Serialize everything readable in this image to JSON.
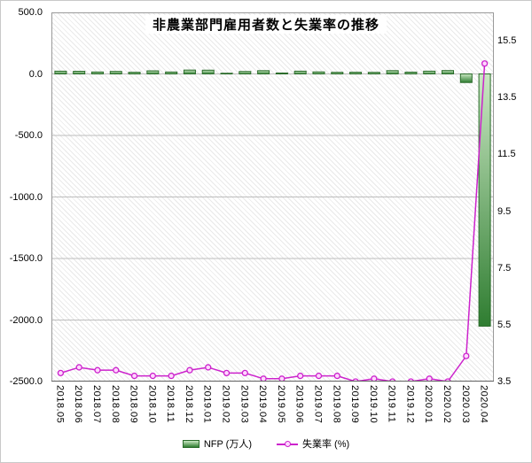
{
  "chart_data": {
    "type": "bar",
    "subtype": "bar-line-combo",
    "title": "非農業部門雇用者数と失業率の推移",
    "categories": [
      "2018.05",
      "2018.06",
      "2018.07",
      "2018.08",
      "2018.09",
      "2018.10",
      "2018.11",
      "2018.12",
      "2019.01",
      "2019.02",
      "2019.03",
      "2019.04",
      "2019.05",
      "2019.06",
      "2019.07",
      "2019.08",
      "2019.09",
      "2019.10",
      "2019.11",
      "2019.12",
      "2020.01",
      "2020.02",
      "2020.03",
      "2020.04"
    ],
    "series": [
      {
        "name": "NFP (万人)",
        "type": "bar",
        "axis": "left",
        "values": [
          22.3,
          21.3,
          15.7,
          20.1,
          13.4,
          25.0,
          15.5,
          31.2,
          30.4,
          5.6,
          19.6,
          26.3,
          7.5,
          22.4,
          16.4,
          13.0,
          13.6,
          12.8,
          26.6,
          14.5,
          22.5,
          27.3,
          -70.1,
          -2050.0
        ],
        "color_top": "#c9e7c2",
        "color_bottom": "#2f7d31",
        "border": "#2a6b2a"
      },
      {
        "name": "失業率 (%)",
        "type": "line",
        "axis": "right",
        "values": [
          3.8,
          4.0,
          3.9,
          3.9,
          3.7,
          3.7,
          3.7,
          3.9,
          4.0,
          3.8,
          3.8,
          3.6,
          3.6,
          3.7,
          3.7,
          3.7,
          3.5,
          3.6,
          3.5,
          3.5,
          3.6,
          3.5,
          4.4,
          14.7
        ],
        "color": "#cc22cc",
        "marker_fill": "#ffd7ff"
      }
    ],
    "left_axis": {
      "min": -2500,
      "max": 500,
      "ticks": [
        "500.0",
        "0.0",
        "-500.0",
        "-1000.0",
        "-1500.0",
        "-2000.0",
        "-2500.0"
      ]
    },
    "right_axis": {
      "min": 3.5,
      "max": 16.5,
      "ticks": [
        "15.5",
        "13.5",
        "11.5",
        "9.5",
        "7.5",
        "5.5",
        "3.5"
      ]
    },
    "grid": true,
    "legend_position": "bottom"
  }
}
